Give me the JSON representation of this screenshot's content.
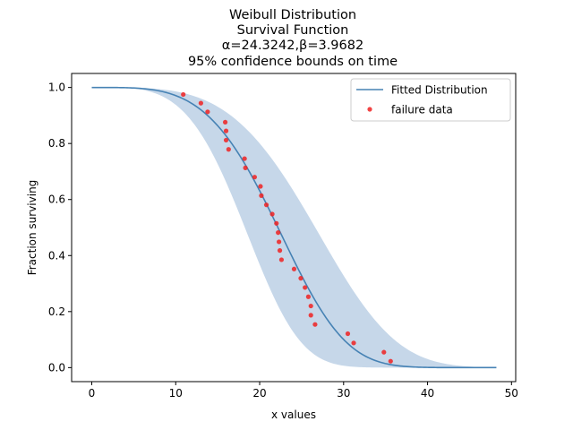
{
  "chart_data": {
    "type": "line",
    "title_lines": [
      "Weibull Distribution",
      "Survival Function",
      "α=24.3242,β=3.9682",
      "95% confidence bounds on time"
    ],
    "xlabel": "x values",
    "ylabel": "Fraction surviving",
    "xlim": [
      -2.4,
      50.5
    ],
    "ylim": [
      -0.05,
      1.05
    ],
    "xticks": [
      0,
      10,
      20,
      30,
      40,
      50
    ],
    "yticks": [
      0.0,
      0.2,
      0.4,
      0.6,
      0.8,
      1.0
    ],
    "xtick_labels": [
      "0",
      "10",
      "20",
      "30",
      "40",
      "50"
    ],
    "ytick_labels": [
      "0.0",
      "0.2",
      "0.4",
      "0.6",
      "0.8",
      "1.0"
    ],
    "grid": false,
    "legend": {
      "placement": "top-right",
      "entries": [
        "Fitted Distribution",
        "failure data"
      ]
    },
    "fitted": {
      "name": "Fitted Distribution",
      "alpha": 24.3242,
      "beta": 3.9682,
      "x_range": [
        0,
        48.2
      ],
      "color": "#4682b4"
    },
    "confidence_band": {
      "level": 0.95,
      "lower_alpha": 20.0,
      "upper_alpha": 29.2,
      "color": "#c6d7e9"
    },
    "failure_data": {
      "name": "failure data",
      "color": "#ee2222",
      "points": [
        [
          10.9,
          0.975
        ],
        [
          13.0,
          0.944
        ],
        [
          13.8,
          0.913
        ],
        [
          15.9,
          0.876
        ],
        [
          16.0,
          0.845
        ],
        [
          16.0,
          0.812
        ],
        [
          16.3,
          0.779
        ],
        [
          18.2,
          0.746
        ],
        [
          18.3,
          0.713
        ],
        [
          19.4,
          0.68
        ],
        [
          20.1,
          0.647
        ],
        [
          20.2,
          0.614
        ],
        [
          20.8,
          0.581
        ],
        [
          21.5,
          0.548
        ],
        [
          22.0,
          0.515
        ],
        [
          22.2,
          0.482
        ],
        [
          22.3,
          0.449
        ],
        [
          22.4,
          0.418
        ],
        [
          22.6,
          0.385
        ],
        [
          24.1,
          0.352
        ],
        [
          24.9,
          0.319
        ],
        [
          25.4,
          0.286
        ],
        [
          25.8,
          0.253
        ],
        [
          26.1,
          0.22
        ],
        [
          26.1,
          0.187
        ],
        [
          26.6,
          0.154
        ],
        [
          30.5,
          0.121
        ],
        [
          31.2,
          0.088
        ],
        [
          34.8,
          0.055
        ],
        [
          35.6,
          0.023
        ]
      ]
    }
  }
}
